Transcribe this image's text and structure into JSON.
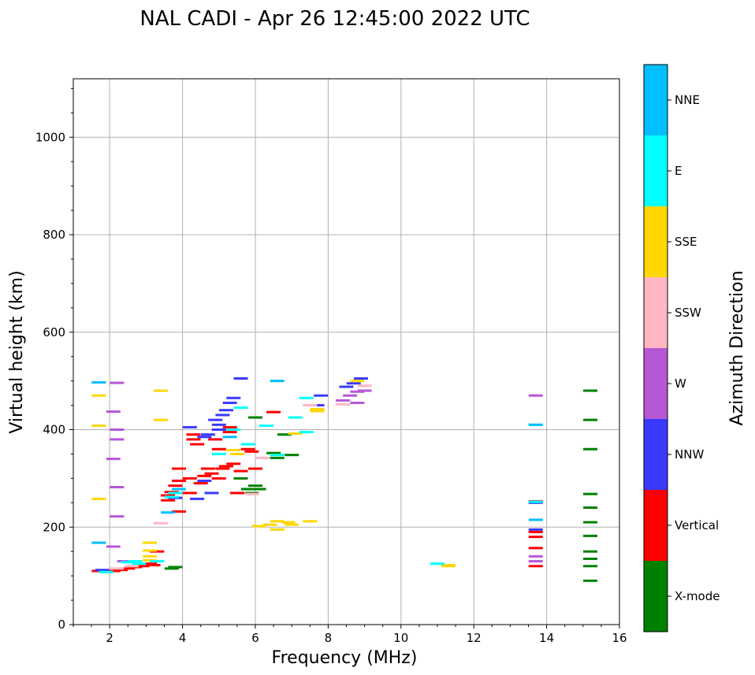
{
  "chart_data": {
    "type": "scatter",
    "title": "NAL CADI - Apr 26 12:45:00 2022 UTC",
    "xlabel": "Frequency (MHz)",
    "ylabel": "Virtual height (km)",
    "xlim": [
      1,
      16
    ],
    "ylim": [
      0,
      1120
    ],
    "xticks": [
      2,
      4,
      6,
      8,
      10,
      12,
      14,
      16
    ],
    "yticks": [
      0,
      200,
      400,
      600,
      800,
      1000
    ],
    "grid": true,
    "colorbar": {
      "title": "Azimuth Direction",
      "categories": [
        {
          "name": "X-mode",
          "color": "#008000"
        },
        {
          "name": "Vertical",
          "color": "#ff0000"
        },
        {
          "name": "NNW",
          "color": "#3a3aff"
        },
        {
          "name": "W",
          "color": "#b657d6"
        },
        {
          "name": "SSW",
          "color": "#ffb6c1"
        },
        {
          "name": "SSE",
          "color": "#ffd700"
        },
        {
          "name": "E",
          "color": "#00ffff"
        },
        {
          "name": "NNE",
          "color": "#00bfff"
        }
      ]
    },
    "series": [
      {
        "name": "X-mode",
        "color": "#008000",
        "points": [
          [
            3.7,
            115
          ],
          [
            3.8,
            118
          ],
          [
            5.6,
            300
          ],
          [
            5.8,
            278
          ],
          [
            5.9,
            270
          ],
          [
            6.0,
            285
          ],
          [
            6.1,
            278
          ],
          [
            6.5,
            352
          ],
          [
            6.6,
            342
          ],
          [
            6.8,
            390
          ],
          [
            7.0,
            348
          ],
          [
            6.0,
            425
          ],
          [
            15.2,
            480
          ],
          [
            15.2,
            420
          ],
          [
            15.2,
            360
          ],
          [
            15.2,
            268
          ],
          [
            15.2,
            240
          ],
          [
            15.2,
            210
          ],
          [
            15.2,
            182
          ],
          [
            15.2,
            150
          ],
          [
            15.2,
            135
          ],
          [
            15.2,
            120
          ],
          [
            15.2,
            90
          ]
        ]
      },
      {
        "name": "Vertical",
        "color": "#ff0000",
        "points": [
          [
            1.7,
            110
          ],
          [
            1.9,
            108
          ],
          [
            2.1,
            110
          ],
          [
            2.3,
            112
          ],
          [
            2.5,
            115
          ],
          [
            2.7,
            118
          ],
          [
            2.9,
            120
          ],
          [
            3.2,
            122
          ],
          [
            3.3,
            150
          ],
          [
            3.1,
            125
          ],
          [
            3.6,
            255
          ],
          [
            3.6,
            265
          ],
          [
            3.7,
            272
          ],
          [
            3.8,
            285
          ],
          [
            3.9,
            295
          ],
          [
            3.9,
            320
          ],
          [
            3.9,
            232
          ],
          [
            4.2,
            300
          ],
          [
            4.2,
            270
          ],
          [
            4.3,
            390
          ],
          [
            4.3,
            380
          ],
          [
            4.4,
            370
          ],
          [
            4.5,
            290
          ],
          [
            4.6,
            305
          ],
          [
            4.7,
            320
          ],
          [
            4.8,
            310
          ],
          [
            4.9,
            380
          ],
          [
            5.0,
            360
          ],
          [
            5.0,
            300
          ],
          [
            5.1,
            320
          ],
          [
            5.2,
            325
          ],
          [
            5.3,
            405
          ],
          [
            5.3,
            395
          ],
          [
            5.4,
            330
          ],
          [
            5.5,
            270
          ],
          [
            5.6,
            315
          ],
          [
            5.8,
            360
          ],
          [
            5.9,
            355
          ],
          [
            6.0,
            320
          ],
          [
            6.5,
            436
          ],
          [
            13.7,
            253
          ],
          [
            13.7,
            190
          ],
          [
            13.7,
            180
          ],
          [
            13.7,
            157
          ],
          [
            13.7,
            120
          ]
        ]
      },
      {
        "name": "NNW",
        "color": "#3a3aff",
        "points": [
          [
            1.8,
            112
          ],
          [
            3.8,
            260
          ],
          [
            4.2,
            405
          ],
          [
            4.4,
            258
          ],
          [
            4.6,
            295
          ],
          [
            4.6,
            385
          ],
          [
            4.7,
            390
          ],
          [
            4.8,
            270
          ],
          [
            4.9,
            420
          ],
          [
            5.0,
            410
          ],
          [
            5.0,
            400
          ],
          [
            5.1,
            430
          ],
          [
            5.2,
            440
          ],
          [
            5.3,
            455
          ],
          [
            5.4,
            465
          ],
          [
            5.6,
            505
          ],
          [
            7.7,
            450
          ],
          [
            7.8,
            470
          ],
          [
            8.5,
            488
          ],
          [
            8.7,
            495
          ],
          [
            8.9,
            505
          ],
          [
            13.7,
            250
          ],
          [
            13.7,
            195
          ]
        ]
      },
      {
        "name": "W",
        "color": "#b657d6",
        "points": [
          [
            2.1,
            160
          ],
          [
            2.2,
            400
          ],
          [
            2.2,
            380
          ],
          [
            2.1,
            340
          ],
          [
            2.2,
            282
          ],
          [
            2.2,
            222
          ],
          [
            2.1,
            437
          ],
          [
            2.2,
            496
          ],
          [
            2.4,
            130
          ],
          [
            8.4,
            460
          ],
          [
            8.6,
            470
          ],
          [
            8.8,
            478
          ],
          [
            8.8,
            455
          ],
          [
            9.0,
            480
          ],
          [
            13.7,
            470
          ],
          [
            13.7,
            140
          ],
          [
            13.7,
            130
          ]
        ]
      },
      {
        "name": "SSW",
        "color": "#ffb6c1",
        "points": [
          [
            2.2,
            115
          ],
          [
            2.6,
            120
          ],
          [
            3.4,
            208
          ],
          [
            5.9,
            268
          ],
          [
            6.2,
            342
          ],
          [
            7.5,
            450
          ],
          [
            8.4,
            452
          ],
          [
            9.0,
            490
          ]
        ]
      },
      {
        "name": "SSE",
        "color": "#ffd700",
        "points": [
          [
            1.7,
            258
          ],
          [
            1.7,
            408
          ],
          [
            1.7,
            470
          ],
          [
            3.1,
            168
          ],
          [
            3.1,
            140
          ],
          [
            3.1,
            152
          ],
          [
            3.1,
            132
          ],
          [
            3.4,
            480
          ],
          [
            3.4,
            420
          ],
          [
            5.4,
            358
          ],
          [
            5.5,
            350
          ],
          [
            6.1,
            202
          ],
          [
            6.4,
            205
          ],
          [
            6.6,
            212
          ],
          [
            6.6,
            195
          ],
          [
            6.9,
            210
          ],
          [
            7.0,
            205
          ],
          [
            7.1,
            392
          ],
          [
            7.7,
            442
          ],
          [
            7.7,
            438
          ],
          [
            7.5,
            212
          ],
          [
            8.8,
            500
          ],
          [
            11.3,
            122
          ],
          [
            11.3,
            120
          ]
        ]
      },
      {
        "name": "E",
        "color": "#00ffff",
        "points": [
          [
            1.9,
            108
          ],
          [
            2.5,
            128
          ],
          [
            2.7,
            130
          ],
          [
            2.8,
            125
          ],
          [
            3.3,
            130
          ],
          [
            3.7,
            262
          ],
          [
            3.8,
            270
          ],
          [
            5.0,
            350
          ],
          [
            5.4,
            400
          ],
          [
            5.6,
            445
          ],
          [
            5.8,
            370
          ],
          [
            6.3,
            408
          ],
          [
            6.6,
            348
          ],
          [
            7.1,
            425
          ],
          [
            7.4,
            465
          ],
          [
            7.4,
            395
          ],
          [
            11.0,
            125
          ],
          [
            13.7,
            410
          ],
          [
            13.7,
            252
          ]
        ]
      },
      {
        "name": "NNE",
        "color": "#00bfff",
        "points": [
          [
            1.7,
            168
          ],
          [
            1.7,
            497
          ],
          [
            3.6,
            230
          ],
          [
            3.9,
            278
          ],
          [
            5.3,
            385
          ],
          [
            6.6,
            500
          ],
          [
            13.7,
            215
          ],
          [
            13.7,
            410
          ]
        ]
      }
    ]
  }
}
